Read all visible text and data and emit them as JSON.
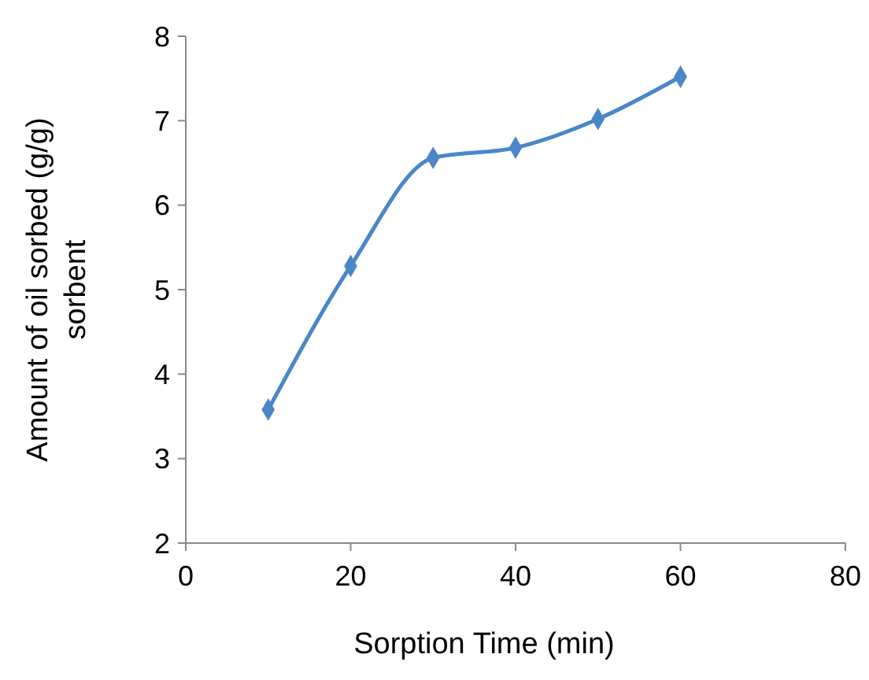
{
  "chart_data": {
    "type": "line",
    "xlabel": "Sorption Time (min)",
    "ylabel": "Amount of oil sorbed (g/g) sorbent",
    "x": [
      10,
      20,
      30,
      40,
      50,
      60
    ],
    "series": [
      {
        "color": "#4a86c8",
        "values": [
          3.58,
          5.28,
          6.56,
          6.68,
          7.02,
          7.52
        ]
      }
    ],
    "xlim": [
      0,
      80
    ],
    "xticks": [
      0,
      20,
      40,
      60,
      80
    ],
    "ylim": [
      2,
      8
    ],
    "yticks": [
      2,
      3,
      4,
      5,
      6,
      7,
      8
    ],
    "grid": false,
    "marker": "diamond",
    "line_style": "solid"
  }
}
